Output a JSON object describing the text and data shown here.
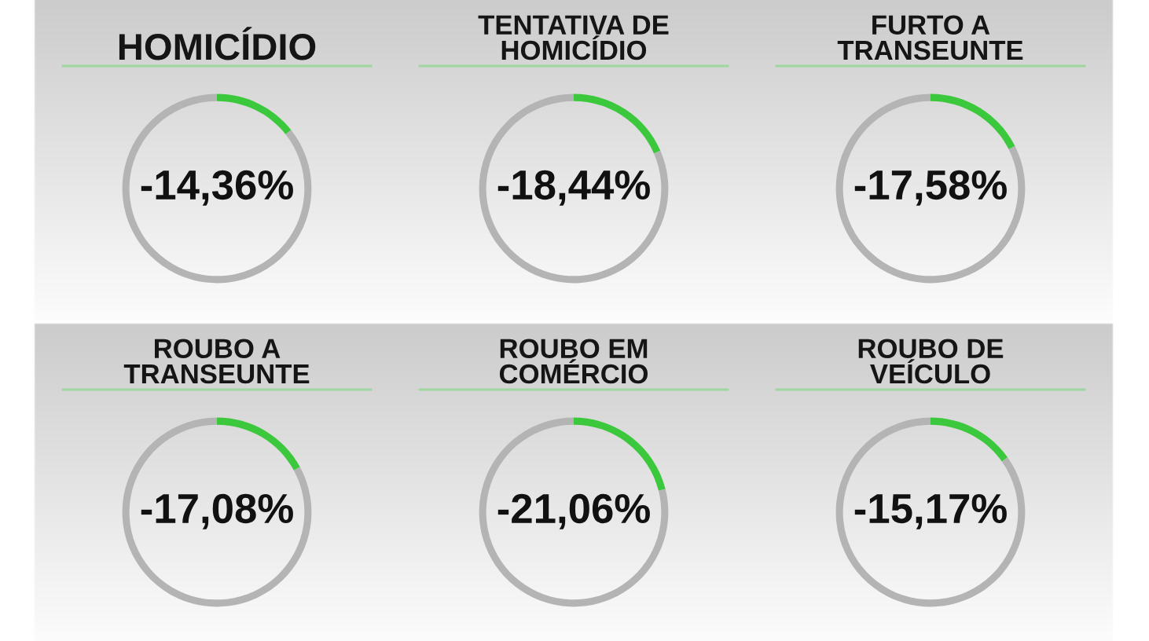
{
  "chart_data": [
    {
      "type": "donut",
      "title": "HOMICÍDIO",
      "categories": [
        null,
        null
      ],
      "values": [
        14.36,
        85.64
      ],
      "colors": [
        "#3cc83c",
        "#b4b4b4"
      ],
      "annotations": [
        "-14,36%"
      ]
    },
    {
      "type": "donut",
      "title": "TENTATIVA DE\nHOMICÍDIO",
      "categories": [
        null,
        null
      ],
      "values": [
        18.44,
        81.56
      ],
      "colors": [
        "#3cc83c",
        "#b4b4b4"
      ],
      "annotations": [
        "-18,44%"
      ]
    },
    {
      "type": "donut",
      "title": "FURTO A\nTRANSEUNTE",
      "categories": [
        null,
        null
      ],
      "values": [
        17.58,
        82.42
      ],
      "colors": [
        "#3cc83c",
        "#b4b4b4"
      ],
      "annotations": [
        "-17,58%"
      ]
    },
    {
      "type": "donut",
      "title": "ROUBO A\nTRANSEUNTE",
      "categories": [
        null,
        null
      ],
      "values": [
        17.08,
        82.92
      ],
      "colors": [
        "#3cc83c",
        "#b4b4b4"
      ],
      "annotations": [
        "-17,08%"
      ]
    },
    {
      "type": "donut",
      "title": "ROUBO EM\nCOMÉRCIO",
      "categories": [
        null,
        null
      ],
      "values": [
        21.06,
        78.94
      ],
      "colors": [
        "#3cc83c",
        "#b4b4b4"
      ],
      "annotations": [
        "-21,06%"
      ]
    },
    {
      "type": "donut",
      "title": "ROUBO DE\nVEÍCULO",
      "categories": [
        null,
        null
      ],
      "values": [
        15.17,
        84.83
      ],
      "colors": [
        "#3cc83c",
        "#b4b4b4"
      ],
      "annotations": [
        "-15,17%"
      ]
    }
  ]
}
